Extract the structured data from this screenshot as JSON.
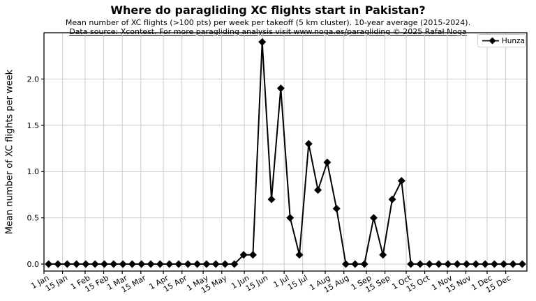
{
  "figure": {
    "title": "Where do paragliding XC flights start in Pakistan?",
    "subtitle_line1": "Mean number of XC flights (>100 pts) per week per takeoff (5 km cluster). 10-year average (2015-2024).",
    "subtitle_line2": "Data source: Xcontest. For more paragliding analysis visit www.noga.es/paragliding © 2025 Rafał Noga"
  },
  "legend": {
    "label": "Hunza",
    "marker": "diamond"
  },
  "colors": {
    "series": "#000000",
    "grid": "#cccccc",
    "spine": "#000000",
    "background": "#ffffff",
    "legend_border": "#cccccc",
    "text": "#000000"
  },
  "chart_data": {
    "type": "line",
    "title": "Where do paragliding XC flights start in Pakistan?",
    "xlabel": "",
    "ylabel": "Mean number of XC flights per week",
    "grid": true,
    "legend_position": "upper right",
    "ylim": [
      -0.075,
      2.5
    ],
    "yticks": [
      "0.0",
      "0.5",
      "1.0",
      "1.5",
      "2.0"
    ],
    "x_axis": {
      "unit": "day_of_year",
      "range": [
        0,
        364
      ],
      "tick_days": [
        0,
        14,
        31,
        45,
        59,
        73,
        90,
        104,
        120,
        134,
        151,
        165,
        181,
        195,
        212,
        226,
        243,
        257,
        273,
        287,
        304,
        318,
        334,
        348
      ],
      "tick_labels": [
        "1 Jan",
        "15 Jan",
        "1 Feb",
        "15 Feb",
        "1 Mar",
        "15 Mar",
        "1 Apr",
        "15 Apr",
        "1 May",
        "15 May",
        "1 Jun",
        "15 Jun",
        "1 Jul",
        "15 Jul",
        "1 Aug",
        "15 Aug",
        "1 Sep",
        "15 Sep",
        "1 Oct",
        "15 Oct",
        "1 Nov",
        "15 Nov",
        "1 Dec",
        "15 Dec"
      ],
      "tick_rotation_deg": 30
    },
    "series": [
      {
        "name": "Hunza",
        "color": "#000000",
        "marker": "diamond",
        "week_dates": [
          "Jan 4",
          "Jan 11",
          "Jan 18",
          "Jan 25",
          "Feb 1",
          "Feb 8",
          "Feb 15",
          "Feb 22",
          "Mar 1",
          "Mar 8",
          "Mar 15",
          "Mar 22",
          "Mar 29",
          "Apr 5",
          "Apr 12",
          "Apr 19",
          "Apr 26",
          "May 3",
          "May 10",
          "May 17",
          "May 24",
          "May 31",
          "Jun 7",
          "Jun 14",
          "Jun 21",
          "Jun 28",
          "Jul 5",
          "Jul 12",
          "Jul 19",
          "Jul 26",
          "Aug 2",
          "Aug 9",
          "Aug 16",
          "Aug 23",
          "Aug 30",
          "Sep 6",
          "Sep 13",
          "Sep 20",
          "Sep 27",
          "Oct 4",
          "Oct 11",
          "Oct 18",
          "Oct 25",
          "Nov 1",
          "Nov 8",
          "Nov 15",
          "Nov 22",
          "Nov 29",
          "Dec 6",
          "Dec 13",
          "Dec 20",
          "Dec 27"
        ],
        "values": [
          0,
          0,
          0,
          0,
          0,
          0,
          0,
          0,
          0,
          0,
          0,
          0,
          0,
          0,
          0,
          0,
          0,
          0,
          0,
          0,
          0,
          0.1,
          0.1,
          2.4,
          0.7,
          1.9,
          0.5,
          0.1,
          1.3,
          0.8,
          1.1,
          0.6,
          0,
          0,
          0,
          0.5,
          0.1,
          0.7,
          0.9,
          0,
          0,
          0,
          0,
          0,
          0,
          0,
          0,
          0,
          0,
          0,
          0,
          0
        ]
      }
    ]
  }
}
